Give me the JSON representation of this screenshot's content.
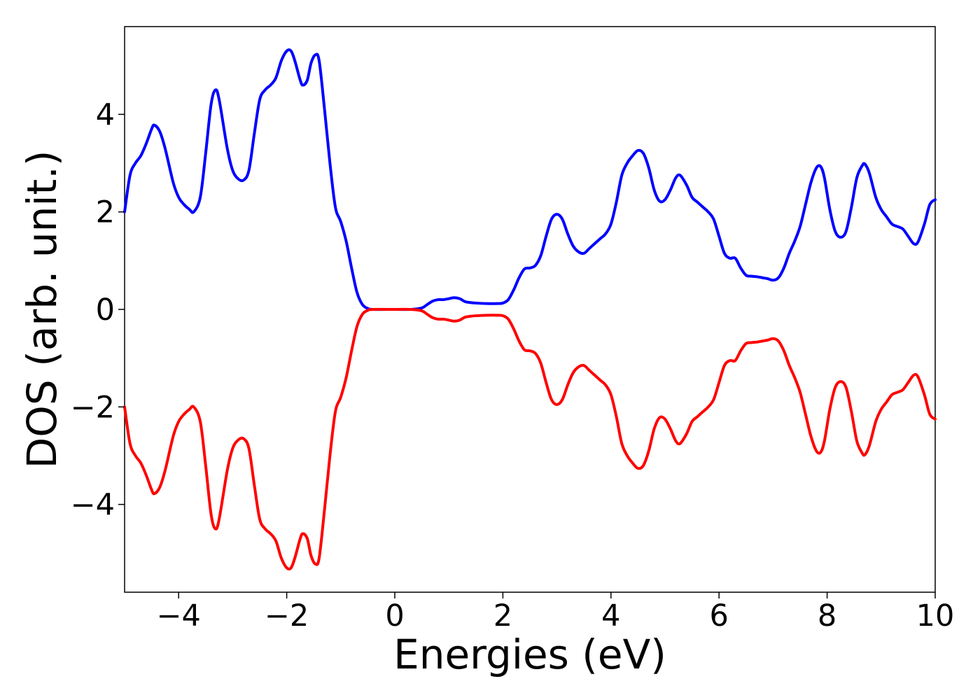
{
  "chart_data": {
    "type": "line",
    "title": "",
    "xlabel": "Energies (eV)",
    "ylabel": "DOS (arb. unit.)",
    "xlim": [
      -5,
      10
    ],
    "ylim": [
      -5.8,
      5.8
    ],
    "grid": false,
    "xticks": [
      -4,
      -2,
      0,
      2,
      4,
      6,
      8,
      10
    ],
    "xtick_labels": [
      "−4",
      "−2",
      "0",
      "2",
      "4",
      "6",
      "8",
      "10"
    ],
    "yticks": [
      -4,
      -2,
      0,
      2,
      4
    ],
    "ytick_labels": [
      "−4",
      "−2",
      "0",
      "2",
      "4"
    ],
    "series": [
      {
        "color": "#0000ff",
        "points": [
          [
            -5.0,
            2.0
          ],
          [
            -4.9,
            2.75
          ],
          [
            -4.8,
            3.0
          ],
          [
            -4.7,
            3.15
          ],
          [
            -4.6,
            3.4
          ],
          [
            -4.5,
            3.7
          ],
          [
            -4.45,
            3.78
          ],
          [
            -4.35,
            3.65
          ],
          [
            -4.25,
            3.3
          ],
          [
            -4.1,
            2.6
          ],
          [
            -4.0,
            2.3
          ],
          [
            -3.9,
            2.15
          ],
          [
            -3.8,
            2.05
          ],
          [
            -3.72,
            2.0
          ],
          [
            -3.6,
            2.3
          ],
          [
            -3.5,
            3.2
          ],
          [
            -3.4,
            4.2
          ],
          [
            -3.32,
            4.5
          ],
          [
            -3.25,
            4.3
          ],
          [
            -3.1,
            3.3
          ],
          [
            -3.0,
            2.85
          ],
          [
            -2.9,
            2.68
          ],
          [
            -2.8,
            2.65
          ],
          [
            -2.7,
            2.85
          ],
          [
            -2.6,
            3.6
          ],
          [
            -2.5,
            4.3
          ],
          [
            -2.4,
            4.5
          ],
          [
            -2.3,
            4.6
          ],
          [
            -2.2,
            4.75
          ],
          [
            -2.1,
            5.1
          ],
          [
            -2.0,
            5.3
          ],
          [
            -1.92,
            5.3
          ],
          [
            -1.85,
            5.1
          ],
          [
            -1.75,
            4.7
          ],
          [
            -1.7,
            4.6
          ],
          [
            -1.62,
            4.7
          ],
          [
            -1.55,
            5.05
          ],
          [
            -1.47,
            5.22
          ],
          [
            -1.4,
            5.1
          ],
          [
            -1.3,
            4.1
          ],
          [
            -1.2,
            3.0
          ],
          [
            -1.1,
            2.1
          ],
          [
            -1.0,
            1.8
          ],
          [
            -0.9,
            1.4
          ],
          [
            -0.8,
            0.85
          ],
          [
            -0.7,
            0.35
          ],
          [
            -0.6,
            0.1
          ],
          [
            -0.5,
            0.02
          ],
          [
            -0.4,
            0.0
          ],
          [
            0.0,
            0.0
          ],
          [
            0.3,
            0.0
          ],
          [
            0.5,
            0.03
          ],
          [
            0.6,
            0.1
          ],
          [
            0.7,
            0.17
          ],
          [
            0.8,
            0.2
          ],
          [
            0.9,
            0.2
          ],
          [
            1.0,
            0.22
          ],
          [
            1.1,
            0.24
          ],
          [
            1.2,
            0.22
          ],
          [
            1.3,
            0.16
          ],
          [
            1.4,
            0.14
          ],
          [
            1.5,
            0.13
          ],
          [
            1.7,
            0.12
          ],
          [
            1.9,
            0.12
          ],
          [
            2.0,
            0.13
          ],
          [
            2.1,
            0.2
          ],
          [
            2.2,
            0.4
          ],
          [
            2.3,
            0.65
          ],
          [
            2.4,
            0.83
          ],
          [
            2.5,
            0.85
          ],
          [
            2.6,
            0.9
          ],
          [
            2.7,
            1.1
          ],
          [
            2.8,
            1.5
          ],
          [
            2.9,
            1.85
          ],
          [
            3.0,
            1.95
          ],
          [
            3.1,
            1.85
          ],
          [
            3.2,
            1.55
          ],
          [
            3.3,
            1.3
          ],
          [
            3.4,
            1.18
          ],
          [
            3.5,
            1.15
          ],
          [
            3.6,
            1.25
          ],
          [
            3.7,
            1.35
          ],
          [
            3.8,
            1.45
          ],
          [
            3.9,
            1.55
          ],
          [
            4.0,
            1.75
          ],
          [
            4.1,
            2.2
          ],
          [
            4.2,
            2.75
          ],
          [
            4.3,
            3.0
          ],
          [
            4.4,
            3.15
          ],
          [
            4.5,
            3.26
          ],
          [
            4.6,
            3.2
          ],
          [
            4.7,
            2.9
          ],
          [
            4.8,
            2.45
          ],
          [
            4.9,
            2.22
          ],
          [
            5.0,
            2.25
          ],
          [
            5.1,
            2.45
          ],
          [
            5.2,
            2.7
          ],
          [
            5.28,
            2.75
          ],
          [
            5.4,
            2.55
          ],
          [
            5.5,
            2.3
          ],
          [
            5.6,
            2.2
          ],
          [
            5.7,
            2.1
          ],
          [
            5.8,
            2.0
          ],
          [
            5.9,
            1.85
          ],
          [
            6.0,
            1.5
          ],
          [
            6.1,
            1.15
          ],
          [
            6.2,
            1.05
          ],
          [
            6.3,
            1.05
          ],
          [
            6.4,
            0.85
          ],
          [
            6.5,
            0.7
          ],
          [
            6.6,
            0.68
          ],
          [
            6.7,
            0.67
          ],
          [
            6.8,
            0.65
          ],
          [
            6.9,
            0.63
          ],
          [
            7.0,
            0.6
          ],
          [
            7.1,
            0.65
          ],
          [
            7.2,
            0.85
          ],
          [
            7.3,
            1.15
          ],
          [
            7.4,
            1.4
          ],
          [
            7.5,
            1.7
          ],
          [
            7.6,
            2.15
          ],
          [
            7.7,
            2.6
          ],
          [
            7.8,
            2.9
          ],
          [
            7.88,
            2.93
          ],
          [
            7.95,
            2.7
          ],
          [
            8.05,
            2.05
          ],
          [
            8.15,
            1.6
          ],
          [
            8.25,
            1.48
          ],
          [
            8.35,
            1.6
          ],
          [
            8.45,
            2.1
          ],
          [
            8.55,
            2.7
          ],
          [
            8.65,
            2.95
          ],
          [
            8.7,
            2.98
          ],
          [
            8.78,
            2.8
          ],
          [
            8.9,
            2.3
          ],
          [
            9.0,
            2.05
          ],
          [
            9.1,
            1.9
          ],
          [
            9.2,
            1.75
          ],
          [
            9.3,
            1.7
          ],
          [
            9.4,
            1.65
          ],
          [
            9.5,
            1.5
          ],
          [
            9.6,
            1.35
          ],
          [
            9.68,
            1.38
          ],
          [
            9.8,
            1.75
          ],
          [
            9.9,
            2.15
          ],
          [
            10.0,
            2.25
          ]
        ]
      },
      {
        "color": "#ff0000",
        "mirror_of_series": 0
      }
    ]
  }
}
